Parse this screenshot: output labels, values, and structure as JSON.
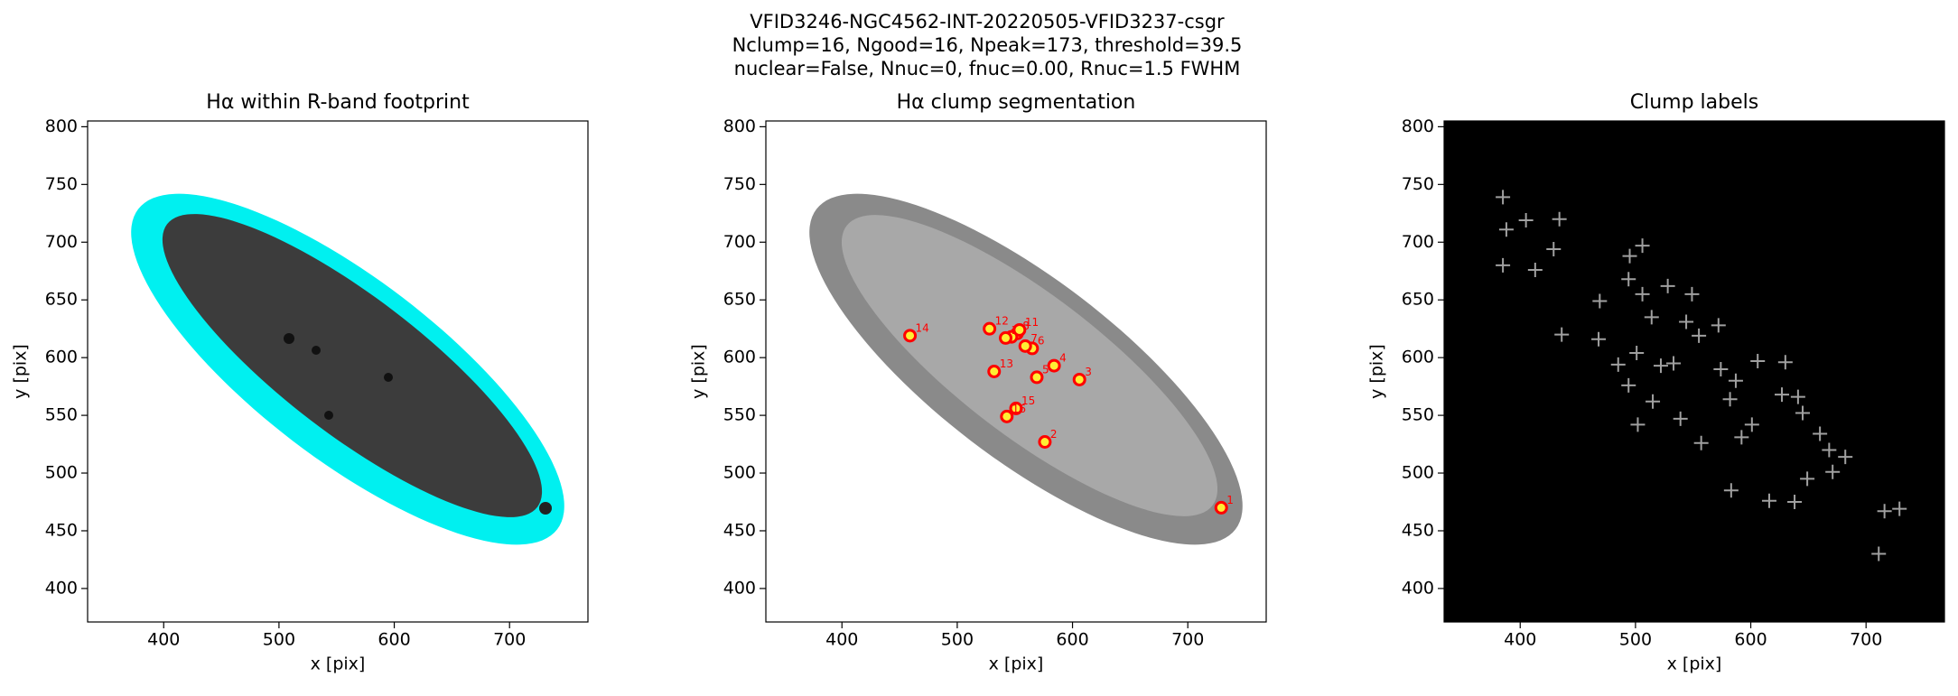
{
  "figure_title": [
    "VFID3246-NGC4562-INT-20220505-VFID3237-csgr",
    "Nclump=16, Ngood=16, Npeak=173, threshold=39.5",
    "nuclear=False, Nnuc=0, fnuc=0.00, Rnuc=1.5 FWHM"
  ],
  "chart_data": [
    {
      "type": "image",
      "title": "Hα within R-band footprint",
      "xlabel": "x [pix]",
      "ylabel": "y [pix]",
      "xlim": [
        334,
        768
      ],
      "ylim": [
        371,
        805
      ],
      "xticks": [
        400,
        500,
        600,
        700
      ],
      "yticks": [
        400,
        450,
        500,
        550,
        600,
        650,
        700,
        750,
        800
      ]
    },
    {
      "type": "scatter",
      "title": "Hα clump segmentation",
      "xlabel": "x [pix]",
      "ylabel": "y [pix]",
      "xlim": [
        334,
        768
      ],
      "ylim": [
        371,
        805
      ],
      "xticks": [
        400,
        500,
        600,
        700
      ],
      "yticks": [
        400,
        450,
        500,
        550,
        600,
        650,
        700,
        750,
        800
      ],
      "marker": "circle",
      "color": "#ff0000",
      "fill": "#ffee33",
      "x": [
        729,
        576,
        606,
        584,
        569,
        565,
        559,
        552,
        547,
        542,
        554,
        528,
        532,
        459,
        551,
        543
      ],
      "y": [
        470,
        527,
        581,
        593,
        583,
        608,
        610,
        621,
        618,
        617,
        624,
        625,
        588,
        619,
        556,
        549
      ],
      "labels": [
        "1",
        "2",
        "3",
        "4",
        "5",
        "6",
        "7",
        "8",
        "9",
        "10",
        "11",
        "12",
        "13",
        "14",
        "15",
        "16"
      ]
    },
    {
      "type": "scatter",
      "title": "Clump labels",
      "xlabel": "x [pix]",
      "ylabel": "y [pix]",
      "xlim": [
        334,
        768
      ],
      "ylim": [
        371,
        805
      ],
      "xticks": [
        400,
        500,
        600,
        700
      ],
      "yticks": [
        400,
        450,
        500,
        550,
        600,
        650,
        700,
        750,
        800
      ],
      "marker": "plus",
      "color": "#a0a0a0",
      "background": "#000000",
      "x": [
        385,
        388,
        405,
        385,
        429,
        434,
        413,
        436,
        468,
        469,
        494,
        495,
        506,
        501,
        485,
        494,
        506,
        514,
        522,
        533,
        528,
        549,
        544,
        555,
        572,
        574,
        587,
        582,
        601,
        592,
        606,
        630,
        627,
        641,
        645,
        660,
        671,
        649,
        638,
        616,
        583,
        557,
        539,
        515,
        502,
        711,
        716,
        729,
        682,
        668
      ],
      "y": [
        739,
        711,
        719,
        680,
        694,
        720,
        676,
        620,
        616,
        649,
        668,
        688,
        697,
        604,
        594,
        576,
        655,
        635,
        593,
        595,
        662,
        655,
        631,
        619,
        628,
        590,
        580,
        564,
        542,
        531,
        597,
        596,
        568,
        566,
        552,
        534,
        501,
        495,
        475,
        476,
        485,
        526,
        547,
        562,
        542,
        430,
        467,
        469,
        514,
        520
      ]
    }
  ]
}
